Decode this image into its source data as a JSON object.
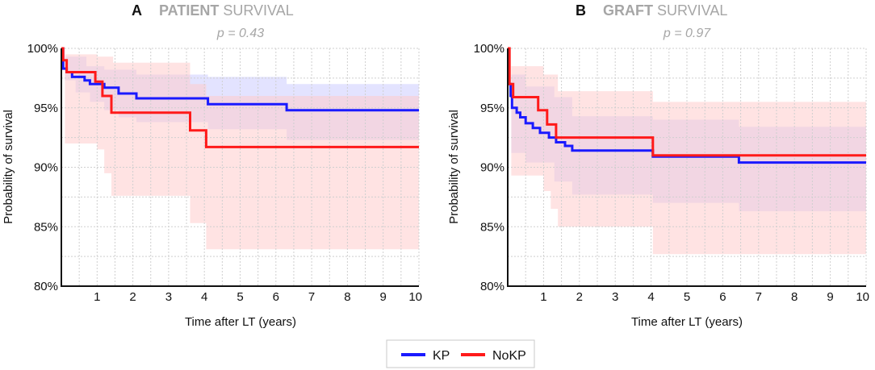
{
  "chart_data": [
    {
      "type": "line",
      "panel_letter": "A",
      "title_bold": "PATIENT",
      "title_rest": " SURVIVAL",
      "subtitle": "p = 0.43",
      "xlabel": "Time after LT (years)",
      "ylabel": "Probability of survival",
      "xlim": [
        0,
        10
      ],
      "ylim": [
        80,
        100
      ],
      "x_ticks": [
        1,
        2,
        3,
        4,
        5,
        6,
        7,
        8,
        9,
        10
      ],
      "y_ticks": [
        80,
        85,
        90,
        95,
        100
      ],
      "y_tick_labels": [
        "80%",
        "85%",
        "90%",
        "95%",
        "100%"
      ],
      "grid": true,
      "series": [
        {
          "name": "KP",
          "color": "#1a1aff",
          "band_color": "#ccccff",
          "steps": [
            [
              0,
              100
            ],
            [
              0.05,
              98.3
            ],
            [
              0.15,
              98.0
            ],
            [
              0.3,
              97.6
            ],
            [
              0.65,
              97.3
            ],
            [
              0.8,
              97.0
            ],
            [
              1.2,
              96.7
            ],
            [
              1.6,
              96.2
            ],
            [
              2.1,
              95.8
            ],
            [
              4.1,
              95.3
            ],
            [
              6.3,
              94.8
            ],
            [
              10,
              94.8
            ]
          ],
          "ci_upper": [
            [
              0,
              100
            ],
            [
              0.1,
              99.3
            ],
            [
              0.7,
              98.5
            ],
            [
              1.2,
              98.2
            ],
            [
              2.1,
              97.8
            ],
            [
              4.1,
              97.6
            ],
            [
              6.3,
              97.0
            ],
            [
              10,
              97.0
            ]
          ],
          "ci_lower": [
            [
              0,
              100
            ],
            [
              0.1,
              97.3
            ],
            [
              0.4,
              96.3
            ],
            [
              0.8,
              95.5
            ],
            [
              1.2,
              94.8
            ],
            [
              1.6,
              94.2
            ],
            [
              2.1,
              93.8
            ],
            [
              4.1,
              93.2
            ],
            [
              6.3,
              92.3
            ],
            [
              10,
              92.3
            ]
          ]
        },
        {
          "name": "NoKP",
          "color": "#ff1a1a",
          "band_color": "#ffcccc",
          "steps": [
            [
              0,
              100
            ],
            [
              0.05,
              99.0
            ],
            [
              0.15,
              98.0
            ],
            [
              0.95,
              97.2
            ],
            [
              1.15,
              96.0
            ],
            [
              1.4,
              94.6
            ],
            [
              3.6,
              93.1
            ],
            [
              4.05,
              91.7
            ],
            [
              10,
              91.7
            ]
          ],
          "ci_upper": [
            [
              0,
              100
            ],
            [
              0.1,
              99.5
            ],
            [
              1.0,
              99.3
            ],
            [
              1.45,
              98.8
            ],
            [
              3.6,
              97.0
            ],
            [
              4.05,
              96.0
            ],
            [
              10,
              96.0
            ]
          ],
          "ci_lower": [
            [
              0,
              100
            ],
            [
              0.1,
              92.0
            ],
            [
              1.0,
              91.5
            ],
            [
              1.2,
              89.5
            ],
            [
              1.4,
              87.6
            ],
            [
              3.6,
              85.3
            ],
            [
              4.05,
              83.1
            ],
            [
              10,
              83.1
            ]
          ]
        }
      ]
    },
    {
      "type": "line",
      "panel_letter": "B",
      "title_bold": "GRAFT",
      "title_rest": " SURVIVAL",
      "subtitle": "p = 0.97",
      "xlabel": "Time after LT (years)",
      "ylabel": "Probability of survival",
      "xlim": [
        0,
        10
      ],
      "ylim": [
        80,
        100
      ],
      "x_ticks": [
        1,
        2,
        3,
        4,
        5,
        6,
        7,
        8,
        9,
        10
      ],
      "y_ticks": [
        80,
        85,
        90,
        95,
        100
      ],
      "y_tick_labels": [
        "80%",
        "85%",
        "90%",
        "95%",
        "100%"
      ],
      "grid": true,
      "series": [
        {
          "name": "KP",
          "color": "#1a1aff",
          "band_color": "#ccccff",
          "steps": [
            [
              0,
              100
            ],
            [
              0.03,
              97.0
            ],
            [
              0.08,
              96.0
            ],
            [
              0.12,
              95.0
            ],
            [
              0.25,
              94.6
            ],
            [
              0.35,
              94.2
            ],
            [
              0.5,
              93.7
            ],
            [
              0.7,
              93.3
            ],
            [
              0.9,
              92.9
            ],
            [
              1.15,
              92.5
            ],
            [
              1.35,
              92.1
            ],
            [
              1.6,
              91.8
            ],
            [
              1.8,
              91.4
            ],
            [
              4.05,
              90.9
            ],
            [
              6.45,
              90.4
            ],
            [
              10,
              90.4
            ]
          ],
          "ci_upper": [
            [
              0,
              100
            ],
            [
              0.1,
              97.8
            ],
            [
              0.5,
              96.8
            ],
            [
              1.3,
              95.9
            ],
            [
              1.8,
              94.3
            ],
            [
              4.05,
              94.0
            ],
            [
              6.45,
              93.4
            ],
            [
              10,
              93.4
            ]
          ],
          "ci_lower": [
            [
              0,
              100
            ],
            [
              0.1,
              91.2
            ],
            [
              0.5,
              90.4
            ],
            [
              1.3,
              88.8
            ],
            [
              1.8,
              87.7
            ],
            [
              4.05,
              87.0
            ],
            [
              6.45,
              86.3
            ],
            [
              10,
              86.3
            ]
          ]
        },
        {
          "name": "NoKP",
          "color": "#ff1a1a",
          "band_color": "#ffcccc",
          "steps": [
            [
              0,
              100
            ],
            [
              0.05,
              97.0
            ],
            [
              0.15,
              95.9
            ],
            [
              0.85,
              94.8
            ],
            [
              1.1,
              93.6
            ],
            [
              1.35,
              92.5
            ],
            [
              4.05,
              91.0
            ],
            [
              10,
              91.0
            ]
          ],
          "ci_upper": [
            [
              0,
              100
            ],
            [
              0.1,
              98.5
            ],
            [
              1.0,
              97.8
            ],
            [
              1.4,
              96.4
            ],
            [
              4.05,
              95.5
            ],
            [
              10,
              95.5
            ]
          ],
          "ci_lower": [
            [
              0,
              100
            ],
            [
              0.1,
              89.3
            ],
            [
              1.0,
              88.0
            ],
            [
              1.2,
              86.5
            ],
            [
              1.4,
              85.0
            ],
            [
              4.05,
              82.7
            ],
            [
              10,
              82.7
            ]
          ]
        }
      ]
    }
  ],
  "legend": {
    "items": [
      {
        "label": "KP",
        "color": "#1a1aff"
      },
      {
        "label": "NoKP",
        "color": "#ff1a1a"
      }
    ]
  }
}
